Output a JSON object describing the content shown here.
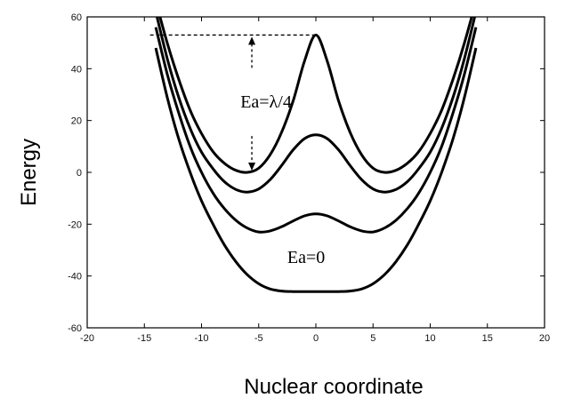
{
  "chart_data": {
    "type": "line",
    "title": "",
    "xlabel": "Nuclear coordinate",
    "ylabel": "Energy",
    "xlim": [
      -20,
      20
    ],
    "ylim": [
      -60,
      60
    ],
    "x_ticks": [
      -20,
      -15,
      -10,
      -5,
      0,
      5,
      10,
      15,
      20
    ],
    "y_ticks": [
      -60,
      -40,
      -20,
      0,
      20,
      40,
      60
    ],
    "grid": false,
    "series": [
      {
        "x": [
          -14,
          -13,
          -12,
          -11,
          -10,
          -9,
          -8,
          -7,
          -6,
          -5,
          -4,
          -3,
          -2,
          -1,
          0,
          1,
          2,
          3,
          4,
          5,
          6,
          7,
          8,
          9,
          10,
          11,
          12,
          13,
          14
        ],
        "values": [
          66,
          50,
          36,
          24,
          15,
          8,
          3.5,
          0.8,
          0,
          1.6,
          6.8,
          15.4,
          27.4,
          42.8,
          53,
          42.8,
          27.4,
          15.4,
          6.8,
          1.6,
          0,
          0.8,
          3.5,
          8,
          15,
          24,
          36,
          50,
          66
        ]
      },
      {
        "x": [
          -14,
          -13,
          -12,
          -11,
          -10,
          -9,
          -8,
          -7,
          -6,
          -5,
          -4,
          -3,
          -2,
          -1,
          0,
          1,
          2,
          3,
          4,
          5,
          6,
          7,
          8,
          9,
          10,
          11,
          12,
          13,
          14
        ],
        "values": [
          62,
          44,
          29,
          17,
          7.8,
          1.4,
          -3.6,
          -6.6,
          -7.6,
          -6.4,
          -2.8,
          2.6,
          8.6,
          13,
          14.5,
          13,
          8.6,
          2.6,
          -2.8,
          -6.4,
          -7.6,
          -6.6,
          -3.6,
          1.4,
          7.8,
          17,
          29,
          44,
          62
        ]
      },
      {
        "x": [
          -14,
          -13,
          -12,
          -11,
          -10,
          -9,
          -8,
          -7,
          -6,
          -5,
          -4,
          -3,
          -2,
          -1,
          0,
          1,
          2,
          3,
          4,
          5,
          6,
          7,
          8,
          9,
          10,
          11,
          12,
          13,
          14
        ],
        "values": [
          56,
          38,
          23,
          10,
          0,
          -8,
          -14,
          -18.5,
          -21.5,
          -23,
          -22.6,
          -21,
          -18.8,
          -16.8,
          -16,
          -16.8,
          -18.8,
          -21,
          -22.6,
          -23,
          -21.5,
          -18.5,
          -14,
          -8,
          0,
          10,
          23,
          38,
          56
        ]
      },
      {
        "x": [
          -14,
          -13,
          -12,
          -11,
          -10,
          -9,
          -8,
          -7,
          -6,
          -5,
          -4,
          -3,
          -2,
          -1,
          0,
          1,
          2,
          3,
          4,
          5,
          6,
          7,
          8,
          9,
          10,
          11,
          12,
          13,
          14
        ],
        "values": [
          48,
          29,
          13,
          0,
          -11,
          -20,
          -28,
          -34.5,
          -39.5,
          -43,
          -45,
          -45.8,
          -46,
          -46,
          -46,
          -46,
          -46,
          -45.8,
          -45,
          -43,
          -39.5,
          -34.5,
          -28,
          -20,
          -11,
          0,
          13,
          29,
          48
        ]
      }
    ],
    "annotations": [
      {
        "text": "Ea=λ/4",
        "x": -6.6,
        "y": 25
      },
      {
        "text": "Ea=0",
        "x": -2.5,
        "y": -35
      }
    ],
    "barrier_arrow": {
      "x": -5.6,
      "y_top": 53,
      "y_bottom": 0,
      "guide_from_x": -14.5,
      "guide_to_x": 0
    }
  }
}
